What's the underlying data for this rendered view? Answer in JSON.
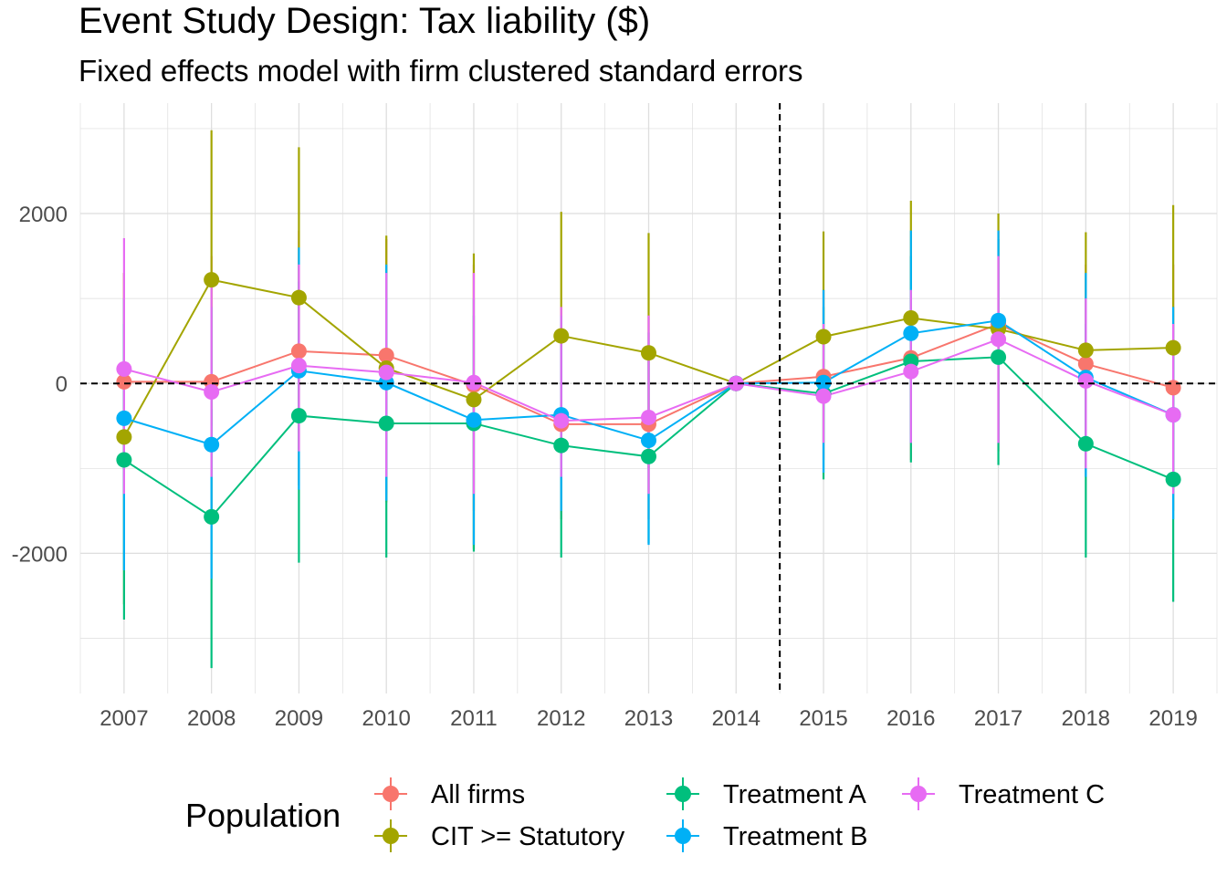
{
  "chart_data": {
    "type": "line",
    "title": "Event Study Design: Tax liability  ($)",
    "subtitle": "Fixed effects model with firm clustered standard errors",
    "xlabel": "",
    "ylabel": "",
    "x": [
      2007,
      2008,
      2009,
      2010,
      2011,
      2012,
      2013,
      2014,
      2015,
      2016,
      2017,
      2018,
      2019
    ],
    "xlim": [
      2006.5,
      2019.5
    ],
    "ylim": [
      -3650,
      3300
    ],
    "y_ticks": [
      -2000,
      0,
      2000
    ],
    "reference_lines": {
      "horizontal": 0,
      "vertical": 2014.5,
      "style": "dashed"
    },
    "grid": true,
    "legend": {
      "title": "Population",
      "position": "bottom"
    },
    "series": [
      {
        "name": "All firms",
        "color": "#F8766D",
        "values": [
          20,
          20,
          380,
          330,
          -20,
          -480,
          -480,
          0,
          80,
          300,
          700,
          230,
          -50
        ],
        "lower": [
          -1300,
          -1500,
          -1200,
          -1300,
          -1500,
          -1600,
          -1600,
          0,
          -900,
          -900,
          -800,
          -1100,
          -1500
        ],
        "upper": [
          1300,
          1500,
          1800,
          1700,
          1400,
          900,
          800,
          0,
          1100,
          1500,
          1800,
          1400,
          1400
        ]
      },
      {
        "name": "CIT >= Statutory",
        "color": "#A3A500",
        "values": [
          -630,
          1220,
          1010,
          180,
          -190,
          560,
          360,
          0,
          550,
          770,
          640,
          390,
          420
        ],
        "lower": [
          -2600,
          -500,
          -800,
          -1400,
          -1950,
          -900,
          -1000,
          0,
          -700,
          -600,
          -700,
          -1000,
          -1250
        ],
        "upper": [
          1300,
          2980,
          2780,
          1740,
          1530,
          2020,
          1770,
          0,
          1790,
          2150,
          2000,
          1780,
          2100
        ]
      },
      {
        "name": "Treatment A",
        "color": "#00BF7D",
        "values": [
          -900,
          -1570,
          -380,
          -470,
          -470,
          -730,
          -860,
          0,
          -120,
          260,
          310,
          -710,
          -1130
        ],
        "lower": [
          -2780,
          -3350,
          -2110,
          -2050,
          -1980,
          -2050,
          -1880,
          0,
          -1130,
          -930,
          -960,
          -2050,
          -2570
        ],
        "upper": [
          700,
          -300,
          1200,
          1000,
          800,
          500,
          400,
          0,
          900,
          1500,
          1700,
          700,
          400
        ]
      },
      {
        "name": "Treatment B",
        "color": "#00B0F6",
        "values": [
          -410,
          -720,
          150,
          10,
          -430,
          -370,
          -670,
          0,
          10,
          590,
          740,
          70,
          -370
        ],
        "lower": [
          -2200,
          -2300,
          -1250,
          -1380,
          -1900,
          -1500,
          -1900,
          0,
          -1050,
          -700,
          -700,
          -1100,
          -1600
        ],
        "upper": [
          1000,
          900,
          1600,
          1400,
          1000,
          800,
          600,
          0,
          1100,
          1800,
          1800,
          1300,
          900
        ]
      },
      {
        "name": "Treatment C",
        "color": "#E76BF3",
        "values": [
          170,
          -100,
          210,
          130,
          10,
          -440,
          -400,
          0,
          -150,
          140,
          520,
          30,
          -370
        ],
        "lower": [
          -1300,
          -1100,
          -800,
          -1100,
          -1300,
          -1100,
          -1300,
          0,
          -700,
          -700,
          -700,
          -1000,
          -1300
        ],
        "upper": [
          1710,
          1200,
          1400,
          1300,
          1300,
          900,
          800,
          0,
          700,
          1100,
          1500,
          1000,
          700
        ]
      }
    ]
  }
}
